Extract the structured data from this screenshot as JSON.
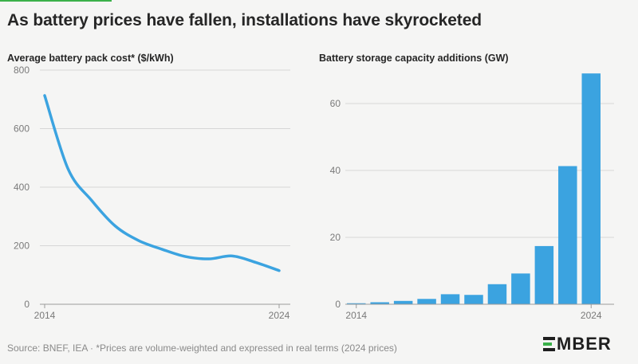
{
  "title": "As battery prices have fallen, installations have skyrocketed",
  "footer": "Source: BNEF, IEA · *Prices are volume-weighted and expressed in real terms (2024 prices)",
  "logo_text": "MBER",
  "logo_full": "EMBER",
  "colors": {
    "accent": "#3ba3e0",
    "grid": "#d6d6d6",
    "axis": "#9a9a9a",
    "tick_text": "#7a7a7a",
    "logo_accent": "#3bb14a"
  },
  "chart_data": [
    {
      "type": "line",
      "title": "Average battery pack cost* ($/kWh)",
      "xlabel": "",
      "ylabel": "",
      "x": [
        2014,
        2015,
        2016,
        2017,
        2018,
        2019,
        2020,
        2021,
        2022,
        2023,
        2024
      ],
      "values": [
        713,
        462,
        355,
        268,
        218,
        188,
        163,
        155,
        165,
        143,
        115
      ],
      "xlim": [
        2014,
        2024
      ],
      "ylim": [
        0,
        800
      ],
      "yticks": [
        0,
        200,
        400,
        600,
        800
      ],
      "xtick_labels": [
        "2014",
        "2024"
      ],
      "grid": true
    },
    {
      "type": "bar",
      "title": "Battery storage capacity additions (GW)",
      "xlabel": "",
      "ylabel": "",
      "categories": [
        2014,
        2015,
        2016,
        2017,
        2018,
        2019,
        2020,
        2021,
        2022,
        2023,
        2024
      ],
      "values": [
        0.3,
        0.6,
        1.0,
        1.6,
        3.0,
        2.8,
        6.0,
        9.2,
        17.4,
        41.3,
        69.0
      ],
      "ylim": [
        0,
        70
      ],
      "yticks": [
        0,
        20,
        40,
        60
      ],
      "xtick_labels": [
        "2014",
        "2024"
      ],
      "grid": true
    }
  ]
}
